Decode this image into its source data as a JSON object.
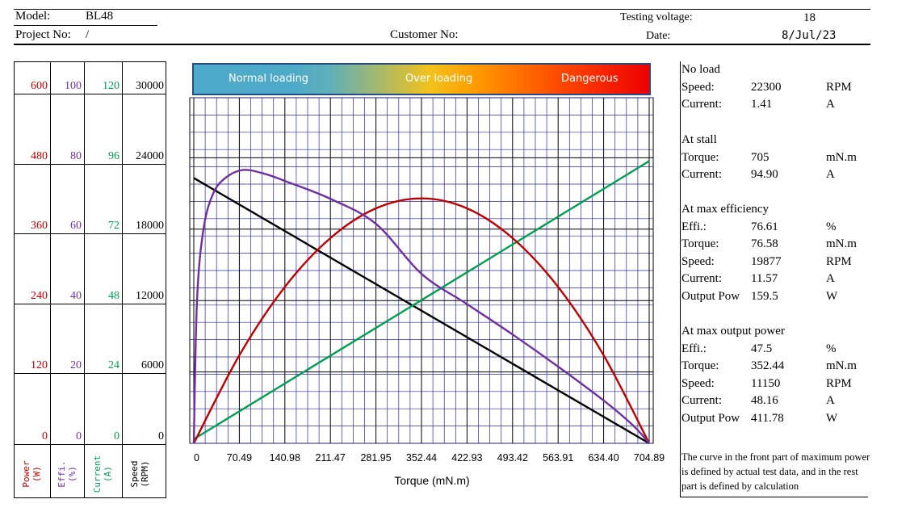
{
  "header": {
    "model_label": "Model:",
    "model_value": "BL48",
    "project_label": "Project No:",
    "project_value": "/",
    "customer_label": "Customer No:",
    "voltage_label": "Testing voltage:",
    "voltage_value": "18",
    "date_label": "Date:",
    "date_value": "8/Jul/23"
  },
  "banner": {
    "normal": "Normal loading",
    "over": "Over loading",
    "danger": "Dangerous"
  },
  "axes": {
    "power": {
      "ticks": [
        "600",
        "480",
        "360",
        "240",
        "120",
        "0"
      ],
      "label": "Power\n(W)",
      "color": "#c00000"
    },
    "effi": {
      "ticks": [
        "100",
        "80",
        "60",
        "40",
        "20",
        "0"
      ],
      "label": "Effi.\n(%)",
      "color": "#7030a0"
    },
    "current": {
      "ticks": [
        "120",
        "96",
        "72",
        "48",
        "24",
        "0"
      ],
      "label": "Current\n(A)",
      "color": "#00a050"
    },
    "speed": {
      "ticks": [
        "30000",
        "24000",
        "18000",
        "12000",
        "6000",
        "0"
      ],
      "label": "Speed\n(RPM)",
      "color": "#000000"
    }
  },
  "info": {
    "no_load": {
      "title": "No load",
      "rows": [
        {
          "k": "Speed:",
          "v": "22300",
          "u": "RPM"
        },
        {
          "k": "Current:",
          "v": "1.41",
          "u": "A"
        }
      ]
    },
    "stall": {
      "title": "At stall",
      "rows": [
        {
          "k": "Torque:",
          "v": "705",
          "u": "mN.m"
        },
        {
          "k": "Current:",
          "v": "94.90",
          "u": "A"
        }
      ]
    },
    "max_eff": {
      "title": "At max efficiency",
      "rows": [
        {
          "k": "Effi.:",
          "v": "76.61",
          "u": "%"
        },
        {
          "k": "Torque:",
          "v": "76.58",
          "u": "mN.m"
        },
        {
          "k": "Speed:",
          "v": "19877",
          "u": "RPM"
        },
        {
          "k": "Current:",
          "v": "11.57",
          "u": "A"
        },
        {
          "k": "Output Pow",
          "v": "159.5",
          "u": "W"
        }
      ]
    },
    "max_pow": {
      "title": "At max output power",
      "rows": [
        {
          "k": "Effi.:",
          "v": "47.5",
          "u": "%"
        },
        {
          "k": "Torque:",
          "v": "352.44",
          "u": "mN.m"
        },
        {
          "k": "Speed:",
          "v": "11150",
          "u": "RPM"
        },
        {
          "k": "Current:",
          "v": "48.16",
          "u": "A"
        },
        {
          "k": "Output Pow",
          "v": "411.78",
          "u": "W"
        }
      ]
    },
    "note": "The curve in the front part of maximum power is defined by actual test data, and in the rest part is defined by calculation"
  },
  "chart_data": {
    "type": "line",
    "xlabel": "Torque (mN.m)",
    "x_ticks": [
      "0",
      "70.49",
      "140.98",
      "211.47",
      "281.95",
      "352.44",
      "422.93",
      "493.42",
      "563.91",
      "634.40",
      "704.89"
    ],
    "xlim": [
      0,
      704.89
    ],
    "series": [
      {
        "name": "Speed",
        "axis": "speed",
        "ylim": [
          0,
          30000
        ],
        "color": "#000000",
        "x": [
          0,
          704.89
        ],
        "y": [
          22300,
          0
        ]
      },
      {
        "name": "Current",
        "axis": "current",
        "ylim": [
          0,
          120
        ],
        "color": "#00a050",
        "x": [
          0,
          704.89
        ],
        "y": [
          1.41,
          94.9
        ]
      },
      {
        "name": "Power",
        "axis": "power",
        "ylim": [
          0,
          600
        ],
        "color": "#c00000",
        "x": [
          0,
          70.49,
          140.98,
          211.47,
          281.95,
          352.44,
          422.93,
          493.42,
          563.91,
          634.4,
          704.89
        ],
        "y": [
          0,
          148,
          263,
          345,
          395,
          411.78,
          395,
          345,
          263,
          148,
          0
        ]
      },
      {
        "name": "Efficiency",
        "axis": "effi",
        "ylim": [
          0,
          100
        ],
        "color": "#7030a0",
        "x": [
          0,
          5,
          15,
          30,
          50,
          76.58,
          110,
          140.98,
          211.47,
          281.95,
          352.44,
          422.93,
          493.42,
          563.91,
          634.4,
          680,
          704.89
        ],
        "y": [
          0,
          40,
          60,
          70,
          74.5,
          76.61,
          75.5,
          73.5,
          68.5,
          61.5,
          47.5,
          39,
          30.5,
          21.5,
          12,
          5,
          0
        ]
      }
    ]
  }
}
